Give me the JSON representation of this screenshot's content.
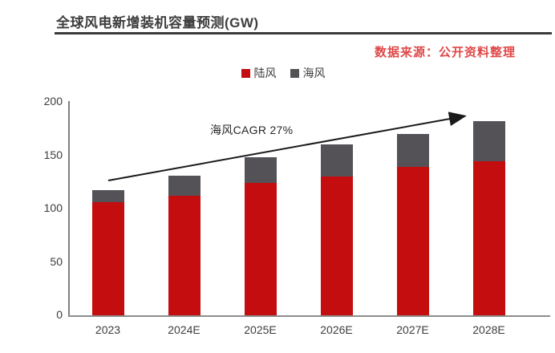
{
  "page": {
    "title": "全球风电新增装机容量预测(GW)",
    "source_note": "数据来源：公开资料整理",
    "accent_red": "#e04747"
  },
  "chart_data": {
    "type": "bar",
    "stacked": true,
    "title": "全球风电新增装机容量预测(GW)",
    "categories": [
      "2023",
      "2024E",
      "2025E",
      "2026E",
      "2027E",
      "2028E"
    ],
    "series": [
      {
        "name": "陆风",
        "color": "#c40d0e",
        "values": [
          106,
          112,
          124,
          130,
          139,
          144
        ]
      },
      {
        "name": "海风",
        "color": "#545257",
        "values": [
          11,
          19,
          24,
          30,
          31,
          38
        ]
      }
    ],
    "totals": [
      117,
      131,
      148,
      160,
      170,
      182
    ],
    "yticks": [
      0,
      50,
      100,
      150,
      200
    ],
    "ylim": [
      0,
      200
    ],
    "xlabel": "",
    "ylabel": "",
    "grid": false,
    "legend_position": "top-center",
    "annotation": {
      "text": "海风CAGR 27%",
      "type": "trend-arrow",
      "from_category": "2023",
      "to_category": "2028E"
    }
  }
}
